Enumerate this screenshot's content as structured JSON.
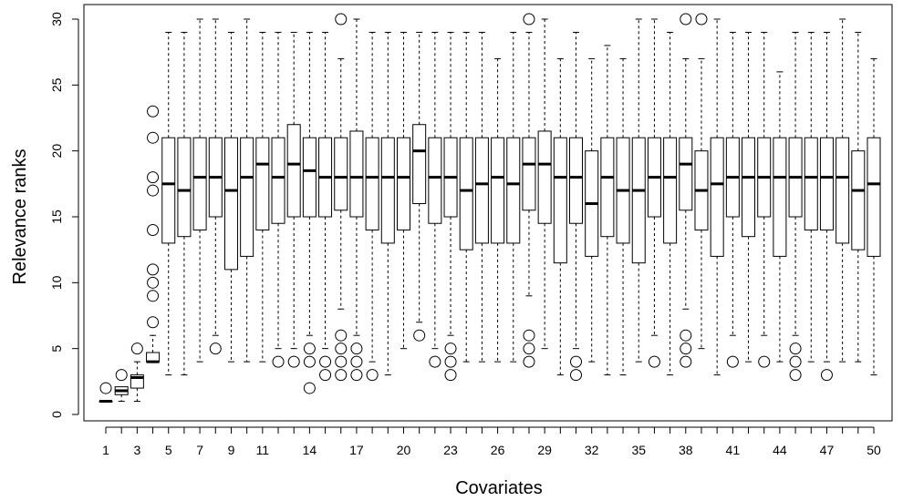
{
  "chart_data": {
    "type": "boxplot",
    "title": "",
    "xlabel": "Covariates",
    "ylabel": "Relevance ranks",
    "ylim": [
      0,
      30
    ],
    "yticks": [
      0,
      5,
      10,
      15,
      20,
      25,
      30
    ],
    "xtick_labels": [
      "1",
      "3",
      "5",
      "7",
      "9",
      "11",
      "14",
      "17",
      "20",
      "23",
      "26",
      "29",
      "32",
      "35",
      "38",
      "41",
      "44",
      "47",
      "50"
    ],
    "xtick_positions": [
      1,
      3,
      5,
      7,
      9,
      11,
      14,
      17,
      20,
      23,
      26,
      29,
      32,
      35,
      38,
      41,
      44,
      47,
      50
    ],
    "grid": false,
    "boxes": [
      {
        "x": 1,
        "q1": 1,
        "median": 1,
        "q3": 1,
        "lower": 1,
        "upper": 1,
        "outliers": [
          2
        ]
      },
      {
        "x": 2,
        "q1": 1.5,
        "median": 1.8,
        "q3": 2.1,
        "lower": 1,
        "upper": 2,
        "outliers": [
          3
        ]
      },
      {
        "x": 3,
        "q1": 2,
        "median": 2.8,
        "q3": 3,
        "lower": 1,
        "upper": 4,
        "outliers": [
          5
        ]
      },
      {
        "x": 4,
        "q1": 4,
        "median": 4,
        "q3": 4.7,
        "lower": 4,
        "upper": 6,
        "outliers": [
          7,
          9,
          10,
          11,
          14,
          17,
          18,
          21,
          23
        ]
      },
      {
        "x": 5,
        "q1": 13,
        "median": 17.5,
        "q3": 21,
        "lower": 3,
        "upper": 29,
        "outliers": []
      },
      {
        "x": 6,
        "q1": 13.5,
        "median": 17,
        "q3": 21,
        "lower": 3,
        "upper": 29,
        "outliers": []
      },
      {
        "x": 7,
        "q1": 14,
        "median": 18,
        "q3": 21,
        "lower": 4,
        "upper": 30,
        "outliers": []
      },
      {
        "x": 8,
        "q1": 15,
        "median": 18,
        "q3": 21,
        "lower": 6,
        "upper": 30,
        "outliers": [
          5
        ]
      },
      {
        "x": 9,
        "q1": 11,
        "median": 17,
        "q3": 21,
        "lower": 4,
        "upper": 29,
        "outliers": []
      },
      {
        "x": 10,
        "q1": 12,
        "median": 18,
        "q3": 21,
        "lower": 4,
        "upper": 30,
        "outliers": []
      },
      {
        "x": 11,
        "q1": 14,
        "median": 19,
        "q3": 21,
        "lower": 4,
        "upper": 29,
        "outliers": []
      },
      {
        "x": 12,
        "q1": 14.5,
        "median": 18,
        "q3": 21,
        "lower": 5,
        "upper": 29,
        "outliers": [
          4
        ]
      },
      {
        "x": 13,
        "q1": 15,
        "median": 19,
        "q3": 22,
        "lower": 5,
        "upper": 29,
        "outliers": [
          4
        ]
      },
      {
        "x": 14,
        "q1": 15,
        "median": 18.5,
        "q3": 21,
        "lower": 6,
        "upper": 29,
        "outliers": [
          2,
          4,
          5
        ]
      },
      {
        "x": 15,
        "q1": 15,
        "median": 18,
        "q3": 21,
        "lower": 5,
        "upper": 29,
        "outliers": [
          3,
          4
        ]
      },
      {
        "x": 16,
        "q1": 15.5,
        "median": 18,
        "q3": 21,
        "lower": 8,
        "upper": 27,
        "outliers": [
          3,
          4,
          5,
          6,
          30
        ]
      },
      {
        "x": 17,
        "q1": 15,
        "median": 18,
        "q3": 21.5,
        "lower": 6,
        "upper": 30,
        "outliers": [
          3,
          4,
          5
        ]
      },
      {
        "x": 18,
        "q1": 14,
        "median": 18,
        "q3": 21,
        "lower": 4,
        "upper": 29,
        "outliers": [
          3
        ]
      },
      {
        "x": 19,
        "q1": 13,
        "median": 18,
        "q3": 21,
        "lower": 3,
        "upper": 29,
        "outliers": []
      },
      {
        "x": 20,
        "q1": 14,
        "median": 18,
        "q3": 21,
        "lower": 5,
        "upper": 29,
        "outliers": []
      },
      {
        "x": 21,
        "q1": 16,
        "median": 20,
        "q3": 22,
        "lower": 7,
        "upper": 29,
        "outliers": [
          6
        ]
      },
      {
        "x": 22,
        "q1": 14.5,
        "median": 18,
        "q3": 21,
        "lower": 5,
        "upper": 29,
        "outliers": [
          4
        ]
      },
      {
        "x": 23,
        "q1": 15,
        "median": 18,
        "q3": 21,
        "lower": 6,
        "upper": 29,
        "outliers": [
          3,
          4,
          5
        ]
      },
      {
        "x": 24,
        "q1": 12.5,
        "median": 17,
        "q3": 21,
        "lower": 4,
        "upper": 29,
        "outliers": []
      },
      {
        "x": 25,
        "q1": 13,
        "median": 17.5,
        "q3": 21,
        "lower": 4,
        "upper": 29,
        "outliers": []
      },
      {
        "x": 26,
        "q1": 13,
        "median": 18,
        "q3": 21,
        "lower": 4,
        "upper": 27,
        "outliers": []
      },
      {
        "x": 27,
        "q1": 13,
        "median": 17.5,
        "q3": 21,
        "lower": 4,
        "upper": 29,
        "outliers": []
      },
      {
        "x": 28,
        "q1": 15.5,
        "median": 19,
        "q3": 21,
        "lower": 9,
        "upper": 29,
        "outliers": [
          4,
          5,
          6,
          30
        ]
      },
      {
        "x": 29,
        "q1": 14.5,
        "median": 19,
        "q3": 21.5,
        "lower": 5,
        "upper": 30,
        "outliers": []
      },
      {
        "x": 30,
        "q1": 11.5,
        "median": 18,
        "q3": 21,
        "lower": 3,
        "upper": 27,
        "outliers": []
      },
      {
        "x": 31,
        "q1": 14.5,
        "median": 18,
        "q3": 21,
        "lower": 5,
        "upper": 29,
        "outliers": [
          3,
          4
        ]
      },
      {
        "x": 32,
        "q1": 12,
        "median": 16,
        "q3": 20,
        "lower": 4,
        "upper": 27,
        "outliers": []
      },
      {
        "x": 33,
        "q1": 13.5,
        "median": 18,
        "q3": 21,
        "lower": 3,
        "upper": 28,
        "outliers": []
      },
      {
        "x": 34,
        "q1": 13,
        "median": 17,
        "q3": 21,
        "lower": 3,
        "upper": 27,
        "outliers": []
      },
      {
        "x": 35,
        "q1": 11.5,
        "median": 17,
        "q3": 21,
        "lower": 4,
        "upper": 30,
        "outliers": []
      },
      {
        "x": 36,
        "q1": 15,
        "median": 18,
        "q3": 21,
        "lower": 6,
        "upper": 30,
        "outliers": [
          4
        ]
      },
      {
        "x": 37,
        "q1": 13,
        "median": 18,
        "q3": 21,
        "lower": 3,
        "upper": 29,
        "outliers": []
      },
      {
        "x": 38,
        "q1": 15.5,
        "median": 19,
        "q3": 21,
        "lower": 8,
        "upper": 27,
        "outliers": [
          4,
          5,
          6,
          30
        ]
      },
      {
        "x": 39,
        "q1": 14,
        "median": 17,
        "q3": 20,
        "lower": 5,
        "upper": 27,
        "outliers": [
          30
        ]
      },
      {
        "x": 40,
        "q1": 12,
        "median": 17.5,
        "q3": 21,
        "lower": 3,
        "upper": 30,
        "outliers": []
      },
      {
        "x": 41,
        "q1": 15,
        "median": 18,
        "q3": 21,
        "lower": 6,
        "upper": 29,
        "outliers": [
          4
        ]
      },
      {
        "x": 42,
        "q1": 13.5,
        "median": 18,
        "q3": 21,
        "lower": 4,
        "upper": 29,
        "outliers": []
      },
      {
        "x": 43,
        "q1": 15,
        "median": 18,
        "q3": 21,
        "lower": 6,
        "upper": 29,
        "outliers": [
          4
        ]
      },
      {
        "x": 44,
        "q1": 12,
        "median": 18,
        "q3": 21,
        "lower": 4,
        "upper": 26,
        "outliers": []
      },
      {
        "x": 45,
        "q1": 15,
        "median": 18,
        "q3": 21,
        "lower": 6,
        "upper": 29,
        "outliers": [
          3,
          4,
          5
        ]
      },
      {
        "x": 46,
        "q1": 14,
        "median": 18,
        "q3": 21,
        "lower": 4,
        "upper": 29,
        "outliers": []
      },
      {
        "x": 47,
        "q1": 14,
        "median": 18,
        "q3": 21,
        "lower": 4,
        "upper": 29,
        "outliers": [
          3
        ]
      },
      {
        "x": 48,
        "q1": 13,
        "median": 18,
        "q3": 21,
        "lower": 4,
        "upper": 30,
        "outliers": []
      },
      {
        "x": 49,
        "q1": 12.5,
        "median": 17,
        "q3": 20,
        "lower": 4,
        "upper": 29,
        "outliers": []
      },
      {
        "x": 50,
        "q1": 12,
        "median": 17.5,
        "q3": 21,
        "lower": 3,
        "upper": 27,
        "outliers": []
      }
    ]
  }
}
